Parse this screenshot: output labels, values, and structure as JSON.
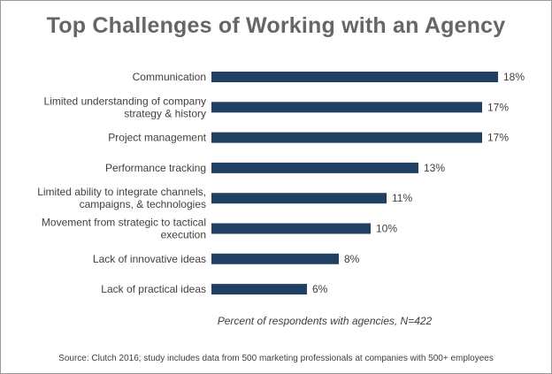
{
  "chart_data": {
    "type": "bar",
    "orientation": "horizontal",
    "title": "Top Challenges of Working with an Agency",
    "xlabel": "Percent of respondents with agencies, N=422",
    "ylabel": "",
    "xlim": [
      0,
      18
    ],
    "grid": false,
    "categories": [
      [
        "Communication"
      ],
      [
        "Limited understanding of company",
        "strategy & history"
      ],
      [
        "Project management"
      ],
      [
        "Performance tracking"
      ],
      [
        "Limited ability to integrate channels,",
        "campaigns, & technologies"
      ],
      [
        "Movement from strategic to tactical",
        "execution"
      ],
      [
        "Lack of innovative ideas"
      ],
      [
        "Lack of practical ideas"
      ]
    ],
    "values": [
      18,
      17,
      17,
      13,
      11,
      10,
      8,
      6
    ],
    "value_labels": [
      "18%",
      "17%",
      "17%",
      "13%",
      "11%",
      "10%",
      "8%",
      "6%"
    ],
    "bar_color": "#1f3f63",
    "source": "Source: Clutch 2016; study includes data from 500 marketing professionals at companies with 500+ employees"
  }
}
